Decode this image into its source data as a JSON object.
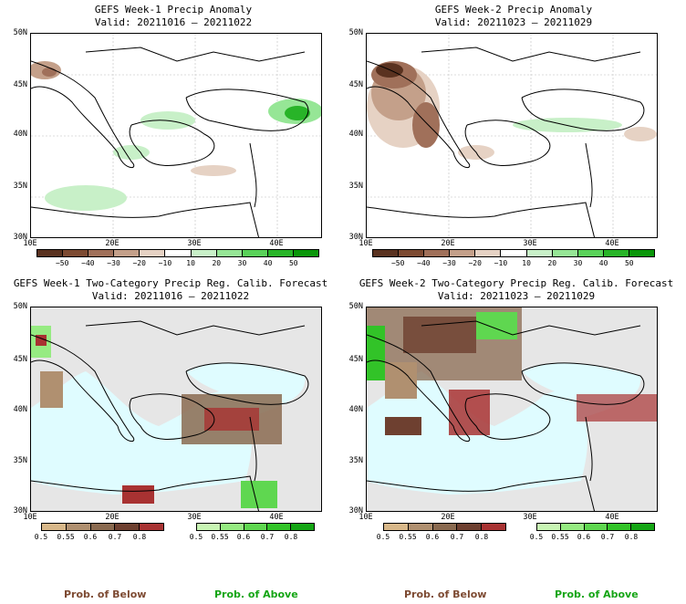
{
  "panels": [
    {
      "title": "GEFS Week-1 Precip Anomaly",
      "valid": "Valid: 20211016 – 20211022",
      "lat_labels": [
        "50N",
        "45N",
        "40N",
        "35N",
        "30N"
      ],
      "lon_labels": [
        "10E",
        "20E",
        "30E",
        "40E"
      ]
    },
    {
      "title": "GEFS Week-2 Precip Anomaly",
      "valid": "Valid: 20211023 – 20211029",
      "lat_labels": [
        "50N",
        "45N",
        "40N",
        "35N",
        "30N"
      ],
      "lon_labels": [
        "10E",
        "20E",
        "30E",
        "40E"
      ]
    },
    {
      "title": "GEFS Week-1 Two-Category Precip Reg. Calib. Forecast",
      "valid": "Valid: 20211016 – 20211022",
      "lat_labels": [
        "50N",
        "45N",
        "40N",
        "35N",
        "30N"
      ],
      "lon_labels": [
        "10E",
        "20E",
        "30E",
        "40E"
      ]
    },
    {
      "title": "GEFS Week-2 Two-Category Precip Reg. Calib. Forecast",
      "valid": "Valid: 20211023 – 20211029",
      "lat_labels": [
        "50N",
        "45N",
        "40N",
        "35N",
        "30N"
      ],
      "lon_labels": [
        "10E",
        "20E",
        "30E",
        "40E"
      ]
    }
  ],
  "anomaly_scale": {
    "ticks": [
      "−50",
      "−40",
      "−30",
      "−20",
      "−10",
      "10",
      "20",
      "30",
      "40",
      "50"
    ],
    "colors": [
      "#5a3220",
      "#7d4a32",
      "#a0705a",
      "#c4a08a",
      "#e6d2c4",
      "#ffffff",
      "#c8f0c8",
      "#96e696",
      "#5ad25a",
      "#28b428",
      "#0a960a"
    ]
  },
  "prob_scale": {
    "ticks": [
      "0.5",
      "0.55",
      "0.6",
      "0.7",
      "0.8"
    ],
    "below_colors": [
      "#d8b88a",
      "#b09070",
      "#8a6a50",
      "#6e4030",
      "#a83232"
    ],
    "above_colors": [
      "#c8f5b4",
      "#96eb82",
      "#5fd750",
      "#32c328",
      "#14a514"
    ]
  },
  "captions": {
    "below": "Prob. of Below",
    "above": "Prob. of Above",
    "below_color": "#7d4a32",
    "above_color": "#14a514"
  }
}
